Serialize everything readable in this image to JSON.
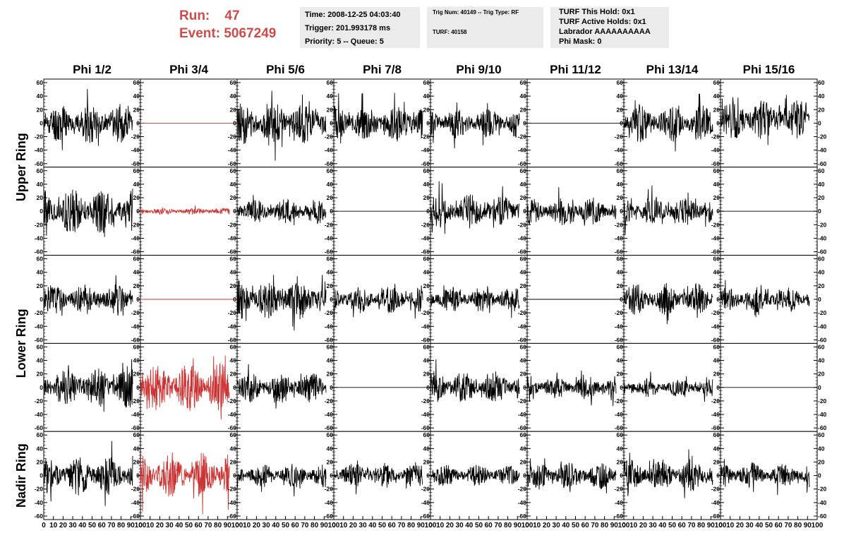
{
  "header": {
    "run_label": "Run:",
    "run_value": "47",
    "event_label": "Event:",
    "event_value": "5067249",
    "colors": {
      "red": "#cc4b4b",
      "box_bg": "#ebebeb"
    }
  },
  "time_box": {
    "line1": "Time: 2008-12-25 04:03:40",
    "line2": "Trigger: 201.993178 ms",
    "line3": "Priority: 5 -- Queue: 5"
  },
  "trig_box": {
    "line1": "Trig Num: 40149 -- Trig Type: RF",
    "line2": "TURF: 40158"
  },
  "turf_box": {
    "line1": "TURF This Hold: 0x1",
    "line2": "TURF Active Holds: 0x1",
    "line3": "Labrador AAAAAAAAAA",
    "line4": "Phi Mask: 0"
  },
  "chart_data": {
    "type": "line",
    "columns": [
      "Phi 1/2",
      "Phi 3/4",
      "Phi 5/6",
      "Phi 7/8",
      "Phi 9/10",
      "Phi 11/12",
      "Phi 13/14",
      "Phi 15/16"
    ],
    "ring_labels": [
      "Upper Ring",
      "Lower Ring",
      "Nadir Ring"
    ],
    "y_ticks": [
      "60",
      "40",
      "20",
      "0",
      "-20",
      "-40",
      "-60"
    ],
    "x_ticks": [
      "0",
      "10",
      "20",
      "30",
      "40",
      "50",
      "60",
      "70",
      "80",
      "90",
      "100"
    ],
    "xlim": [
      0,
      100
    ],
    "ylim": [
      -60,
      60
    ],
    "panel_rows": 5,
    "trace_colors": {
      "normal": "#000000",
      "highlighted": "#cc3333"
    },
    "panels": [
      [
        {
          "amp": 17,
          "red": false,
          "seed": 11
        },
        {
          "amp": 0,
          "red": true,
          "seed": 12
        },
        {
          "amp": 18,
          "red": false,
          "seed": 13
        },
        {
          "amp": 16,
          "red": false,
          "seed": 14
        },
        {
          "amp": 13,
          "red": false,
          "seed": 15
        },
        {
          "amp": 0,
          "red": false,
          "seed": 16
        },
        {
          "amp": 16,
          "red": false,
          "seed": 17
        },
        {
          "amp": 18,
          "red": false,
          "seed": 18,
          "offset": 5
        }
      ],
      [
        {
          "amp": 20,
          "red": false,
          "seed": 21
        },
        {
          "amp": 3,
          "red": true,
          "seed": 22
        },
        {
          "amp": 11,
          "red": false,
          "seed": 23
        },
        {
          "amp": 0,
          "red": false,
          "seed": 24
        },
        {
          "amp": 15,
          "red": false,
          "seed": 25
        },
        {
          "amp": 12,
          "red": false,
          "seed": 26
        },
        {
          "amp": 13,
          "red": false,
          "seed": 27
        },
        {
          "amp": 0,
          "red": false,
          "seed": 28
        }
      ],
      [
        {
          "amp": 13,
          "red": false,
          "seed": 31
        },
        {
          "amp": 0,
          "red": true,
          "seed": 32
        },
        {
          "amp": 18,
          "red": false,
          "seed": 33
        },
        {
          "amp": 12,
          "red": false,
          "seed": 34
        },
        {
          "amp": 11,
          "red": false,
          "seed": 35
        },
        {
          "amp": 0,
          "red": false,
          "seed": 36
        },
        {
          "amp": 14,
          "red": false,
          "seed": 37
        },
        {
          "amp": 11,
          "red": false,
          "seed": 38
        }
      ],
      [
        {
          "amp": 18,
          "red": false,
          "seed": 41
        },
        {
          "amp": 22,
          "red": true,
          "seed": 42
        },
        {
          "amp": 13,
          "red": false,
          "seed": 43
        },
        {
          "amp": 0,
          "red": false,
          "seed": 44
        },
        {
          "amp": 14,
          "red": false,
          "seed": 45
        },
        {
          "amp": 10,
          "red": false,
          "seed": 46
        },
        {
          "amp": 8,
          "red": false,
          "seed": 47
        },
        {
          "amp": 0,
          "red": false,
          "seed": 48
        }
      ],
      [
        {
          "amp": 17,
          "red": false,
          "seed": 51
        },
        {
          "amp": 20,
          "red": true,
          "seed": 52
        },
        {
          "amp": 10,
          "red": false,
          "seed": 53
        },
        {
          "amp": 11,
          "red": false,
          "seed": 54
        },
        {
          "amp": 9,
          "red": false,
          "seed": 55
        },
        {
          "amp": 12,
          "red": false,
          "seed": 56
        },
        {
          "amp": 14,
          "red": false,
          "seed": 57
        },
        {
          "amp": 11,
          "red": false,
          "seed": 58
        }
      ]
    ]
  }
}
